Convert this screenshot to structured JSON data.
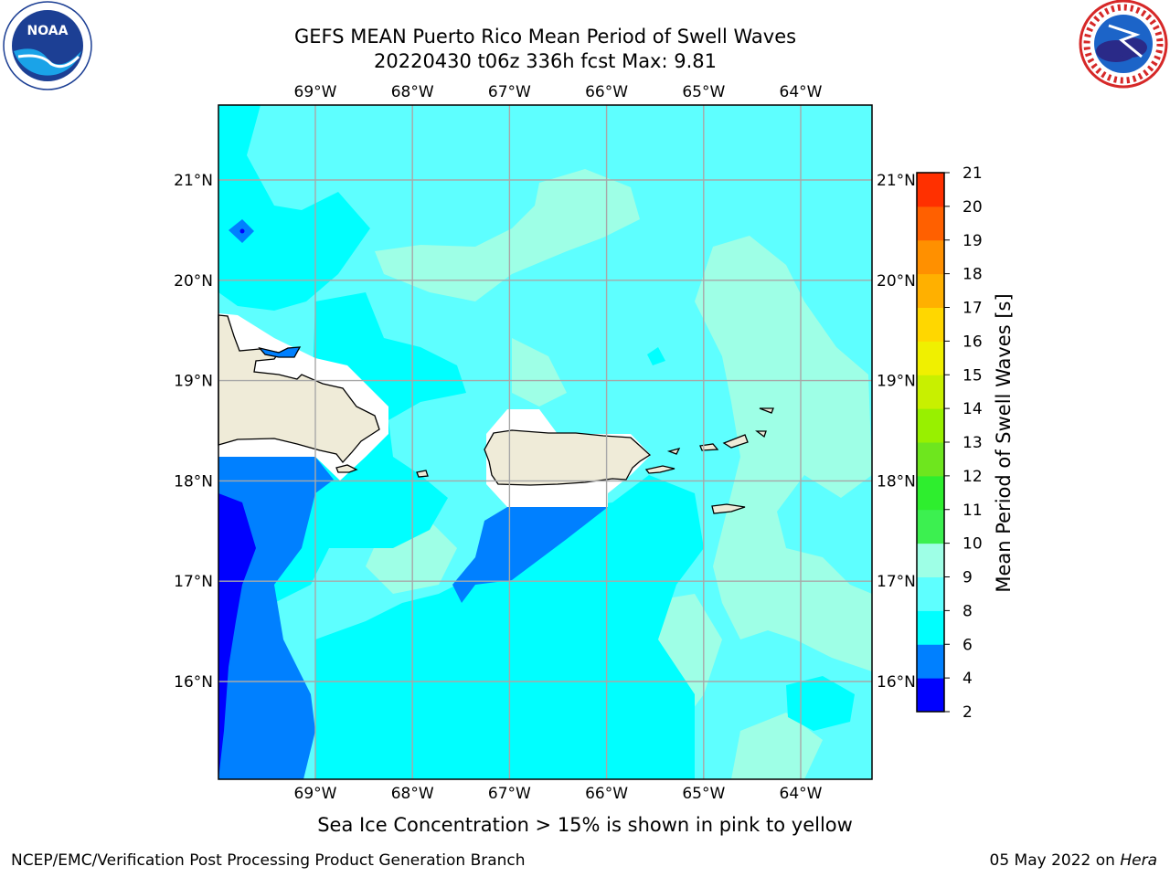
{
  "header": {
    "title_line1": "GEFS MEAN Puerto Rico Mean Period of Swell Waves",
    "title_line2": "20220430 t06z 336h fcst   Max: 9.81"
  },
  "logos": {
    "noaa": {
      "text": "NOAA",
      "ring_text": "NATIONAL OCEANIC AND ATMOSPHERIC ADMINISTRATION · U.S. DEPARTMENT OF COMMERCE"
    },
    "nws": {
      "ring_text": "NATIONAL WEATHER SERVICE"
    }
  },
  "map": {
    "longitude_labels": [
      "69°W",
      "68°W",
      "67°W",
      "66°W",
      "65°W",
      "64°W"
    ],
    "latitude_labels": [
      "21°N",
      "20°N",
      "19°N",
      "18°N",
      "17°N",
      "16°N"
    ],
    "longitudes": [
      -69,
      -68,
      -67,
      -66,
      -65,
      -64
    ],
    "latitudes": [
      21,
      20,
      19,
      18,
      17,
      16
    ],
    "gridlines": true,
    "land_color": "#efebd8",
    "ocean_base_color": "#5effff"
  },
  "colorbar": {
    "title": "Mean Period of Swell Waves [s]",
    "ticks": [
      "2",
      "4",
      "6",
      "8",
      "9",
      "10",
      "11",
      "12",
      "13",
      "14",
      "15",
      "16",
      "17",
      "18",
      "19",
      "20",
      "21"
    ],
    "levels": [
      2,
      4,
      6,
      8,
      9,
      10,
      11,
      12,
      13,
      14,
      15,
      16,
      17,
      18,
      19,
      20,
      21
    ],
    "colors": [
      "#0000ff",
      "#0080ff",
      "#00ffff",
      "#5effff",
      "#9effe6",
      "#3cf050",
      "#2eee2e",
      "#6ee61e",
      "#98f000",
      "#c8f000",
      "#f0f000",
      "#ffd700",
      "#ffb000",
      "#ff9000",
      "#ff6000",
      "#ff3000",
      "#ff0000"
    ]
  },
  "footer": {
    "note": "Sea Ice Concentration > 15% is shown in pink to yellow",
    "credit": "NCEP/EMC/Verification Post Processing Product Generation Branch",
    "date_prefix": "05 May 2022 on ",
    "date_machine": "Hera"
  }
}
